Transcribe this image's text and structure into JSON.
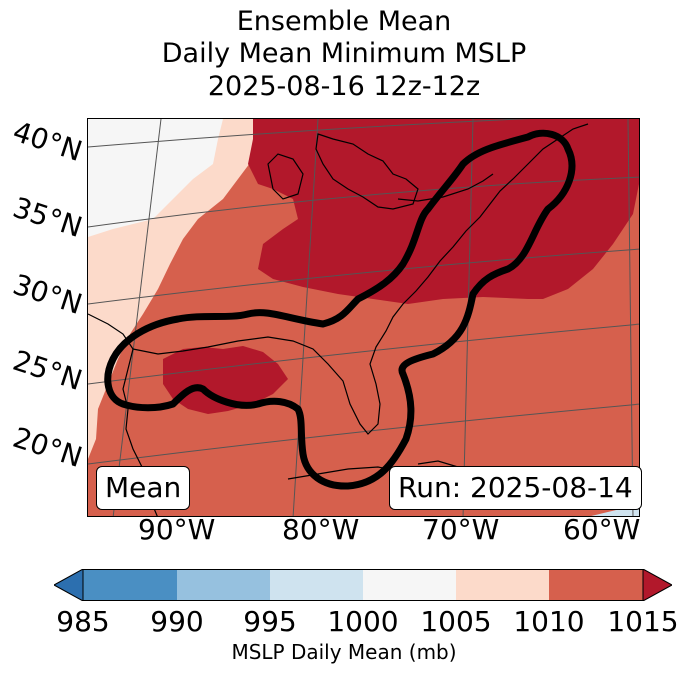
{
  "title": {
    "line1": "Ensemble Mean",
    "line2": "Daily Mean Minimum MSLP",
    "line3": "2025-08-16 12z-12z"
  },
  "map": {
    "lat_labels": [
      "40°N",
      "35°N",
      "30°N",
      "25°N",
      "20°N"
    ],
    "lon_labels": [
      "90°W",
      "80°W",
      "70°W",
      "60°W"
    ],
    "mean_label": "Mean",
    "run_label": "Run: 2025-08-14"
  },
  "colorbar": {
    "ticks": [
      "985",
      "990",
      "995",
      "1000",
      "1005",
      "1010",
      "1015"
    ],
    "label": "MSLP Daily Mean (mb)",
    "colors": [
      "#2c6faf",
      "#4a8fc3",
      "#96c1df",
      "#cfe3ef",
      "#f6f6f6",
      "#fcdaca",
      "#d6604d",
      "#b2182b"
    ]
  },
  "colors": {
    "high_1010": "#d6604d",
    "high_1015": "#b2182b",
    "band_1005": "#fcdaca",
    "band_1000": "#f6f6f6",
    "band_995": "#cfe3ef"
  }
}
